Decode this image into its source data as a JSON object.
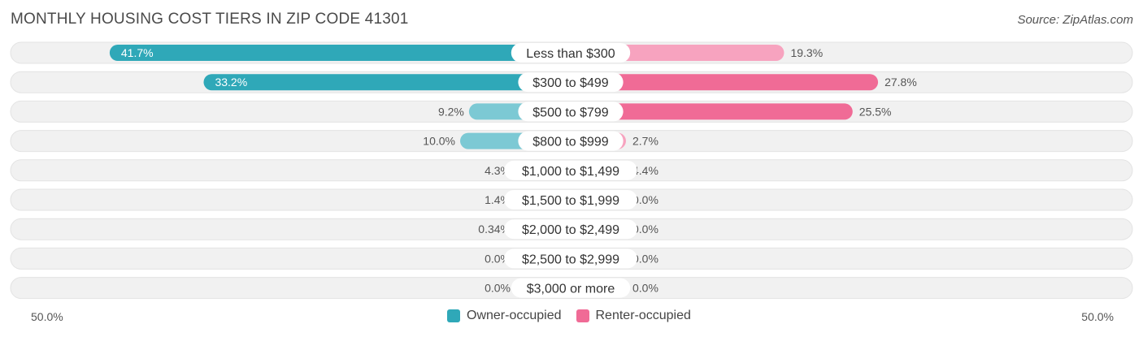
{
  "header": {
    "title": "MONTHLY HOUSING COST TIERS IN ZIP CODE 41301",
    "source": "Source: ZipAtlas.com"
  },
  "axis": {
    "left_label": "50.0%",
    "right_label": "50.0%"
  },
  "legend": {
    "owner_label": "Owner-occupied",
    "renter_label": "Renter-occupied"
  },
  "colors": {
    "owner_strong": "#2fa8b8",
    "owner_light": "#7cc9d4",
    "renter_strong": "#f06b96",
    "renter_light": "#f7a3bf",
    "track": "#efefef"
  },
  "chart_data": {
    "type": "bar",
    "orientation": "diverging-horizontal",
    "title": "MONTHLY HOUSING COST TIERS IN ZIP CODE 41301",
    "xlim": [
      -50,
      50
    ],
    "categories": [
      "Less than $300",
      "$300 to $499",
      "$500 to $799",
      "$800 to $999",
      "$1,000 to $1,499",
      "$1,500 to $1,999",
      "$2,000 to $2,499",
      "$2,500 to $2,999",
      "$3,000 or more"
    ],
    "series": [
      {
        "name": "Owner-occupied",
        "values": [
          41.7,
          33.2,
          9.2,
          10.0,
          4.3,
          1.4,
          0.34,
          0.0,
          0.0
        ],
        "labels": [
          "41.7%",
          "33.2%",
          "9.2%",
          "10.0%",
          "4.3%",
          "1.4%",
          "0.34%",
          "0.0%",
          "0.0%"
        ]
      },
      {
        "name": "Renter-occupied",
        "values": [
          19.3,
          27.8,
          25.5,
          2.7,
          4.4,
          0.0,
          0.0,
          0.0,
          0.0
        ],
        "labels": [
          "19.3%",
          "27.8%",
          "25.5%",
          "2.7%",
          "4.4%",
          "0.0%",
          "0.0%",
          "0.0%",
          "0.0%"
        ]
      }
    ]
  }
}
